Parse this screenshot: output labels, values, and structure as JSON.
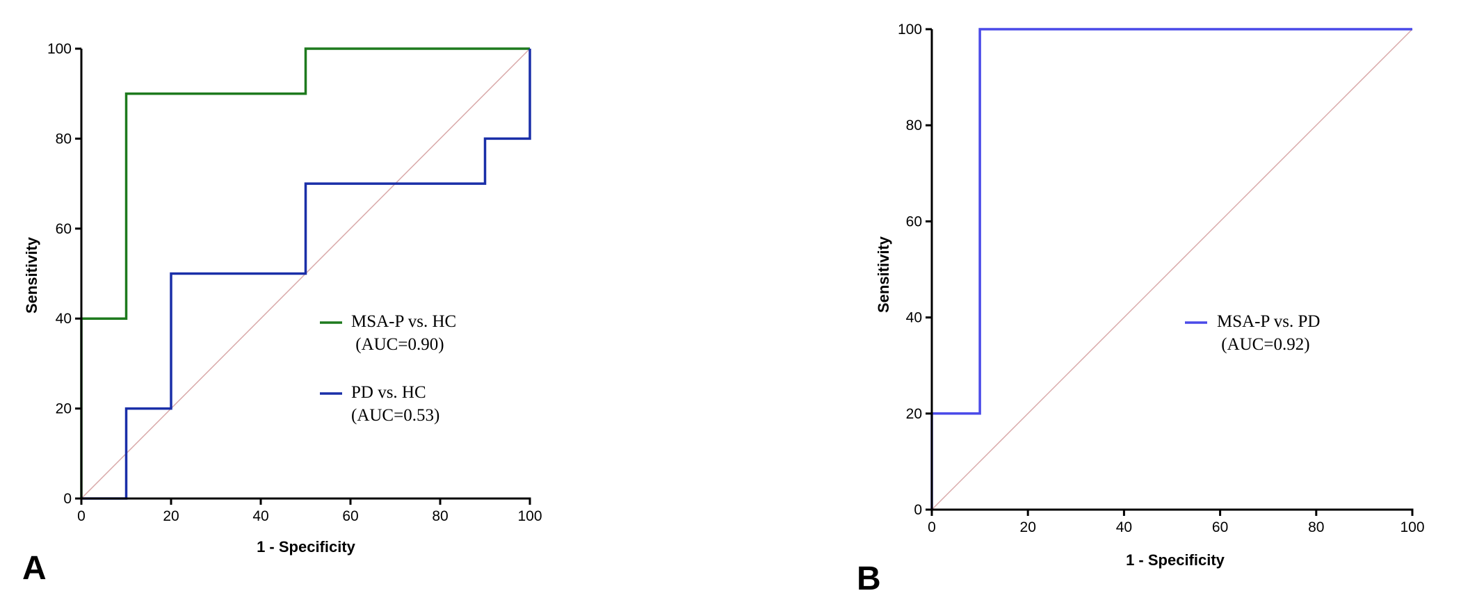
{
  "colors": {
    "green": "#1e7a1e",
    "navy": "#1a2fa8",
    "blue": "#4a4ae8",
    "diagonal": "#d9a9a9",
    "axis": "#000000"
  },
  "panels": [
    {
      "label": "A"
    },
    {
      "label": "B"
    }
  ],
  "chart_data": [
    {
      "type": "line",
      "panel": "A",
      "xlabel": "1 - Specificity",
      "ylabel": "Sensitivity",
      "xlim": [
        0,
        100
      ],
      "ylim": [
        0,
        100
      ],
      "xticks": [
        0,
        20,
        40,
        60,
        80,
        100
      ],
      "yticks": [
        0,
        20,
        40,
        60,
        80,
        100
      ],
      "reference_line": [
        [
          0,
          0
        ],
        [
          100,
          100
        ]
      ],
      "legend_position": "right-center",
      "series": [
        {
          "name": "MSA-P vs. HC",
          "auc_label": " (AUC=0.90)",
          "color": "#1e7a1e",
          "points": [
            [
              0,
              0
            ],
            [
              0,
              40
            ],
            [
              10,
              40
            ],
            [
              10,
              90
            ],
            [
              50,
              90
            ],
            [
              50,
              100
            ],
            [
              100,
              100
            ]
          ]
        },
        {
          "name": "PD vs. HC",
          "auc_label": "(AUC=0.53)",
          "color": "#1a2fa8",
          "points": [
            [
              0,
              0
            ],
            [
              10,
              0
            ],
            [
              10,
              20
            ],
            [
              20,
              20
            ],
            [
              20,
              50
            ],
            [
              50,
              50
            ],
            [
              50,
              70
            ],
            [
              90,
              70
            ],
            [
              90,
              80
            ],
            [
              100,
              80
            ],
            [
              100,
              100
            ]
          ]
        }
      ]
    },
    {
      "type": "line",
      "panel": "B",
      "xlabel": "1 - Specificity",
      "ylabel": "Sensitivity",
      "xlim": [
        0,
        100
      ],
      "ylim": [
        0,
        100
      ],
      "xticks": [
        0,
        20,
        40,
        60,
        80,
        100
      ],
      "yticks": [
        0,
        20,
        40,
        60,
        80,
        100
      ],
      "reference_line": [
        [
          0,
          0
        ],
        [
          100,
          100
        ]
      ],
      "legend_position": "right-center",
      "series": [
        {
          "name": "MSA-P vs. PD",
          "auc_label": " (AUC=0.92)",
          "color": "#4a4ae8",
          "points": [
            [
              0,
              0
            ],
            [
              0,
              20
            ],
            [
              10,
              20
            ],
            [
              10,
              100
            ],
            [
              100,
              100
            ]
          ]
        }
      ]
    }
  ]
}
